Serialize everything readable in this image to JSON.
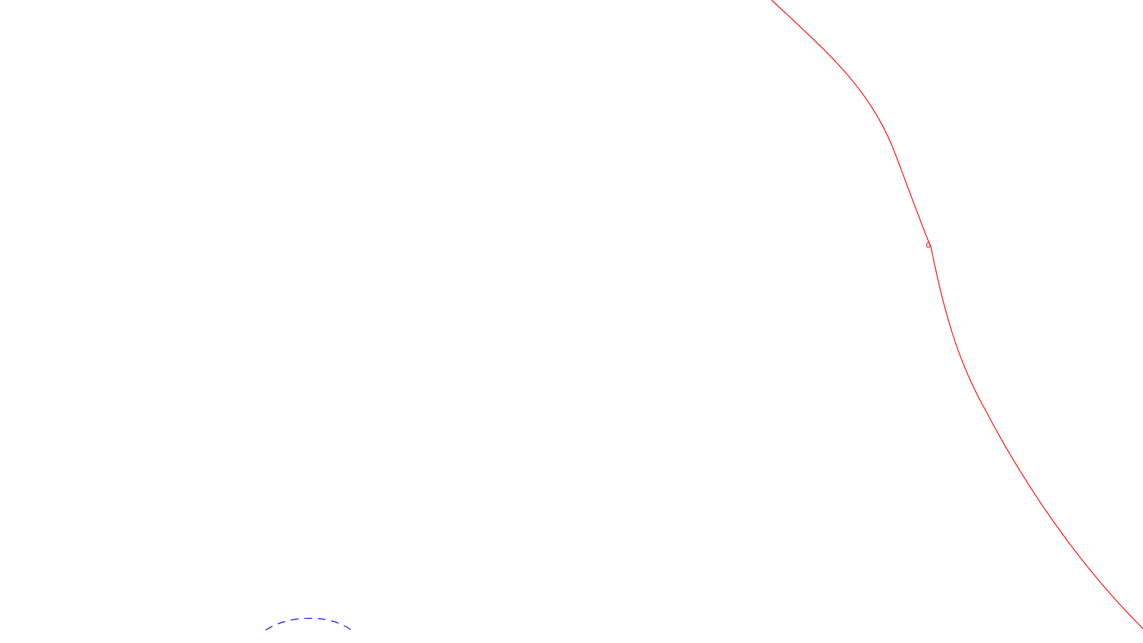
{
  "canvas": {
    "background": "#ffffff"
  },
  "colors": {
    "red_curve": "#ff0000",
    "blue_dashed_curve": "#0000ff",
    "label": "#ff0000"
  },
  "labels": {
    "curve_point_label": "0"
  }
}
